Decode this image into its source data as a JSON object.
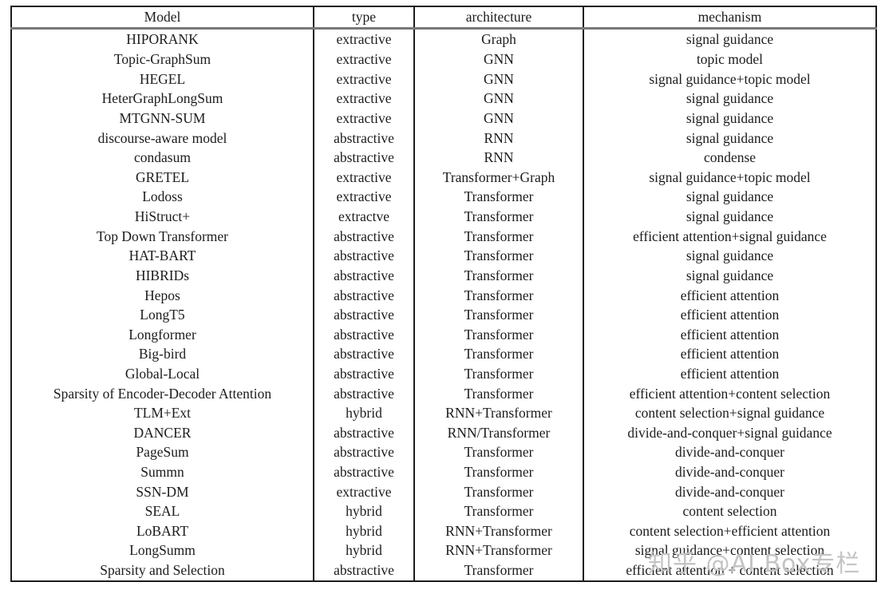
{
  "table": {
    "columns": [
      "Model",
      "type",
      "architecture",
      "mechanism"
    ],
    "rows": [
      [
        "HIPORANK",
        "extractive",
        "Graph",
        "signal guidance"
      ],
      [
        "Topic-GraphSum",
        "extractive",
        "GNN",
        "topic model"
      ],
      [
        "HEGEL",
        "extractive",
        "GNN",
        "signal guidance+topic model"
      ],
      [
        "HeterGraphLongSum",
        "extractive",
        "GNN",
        "signal guidance"
      ],
      [
        "MTGNN-SUM",
        "extractive",
        "GNN",
        "signal guidance"
      ],
      [
        "discourse-aware model",
        "abstractive",
        "RNN",
        "signal guidance"
      ],
      [
        "condasum",
        "abstractive",
        "RNN",
        "condense"
      ],
      [
        "GRETEL",
        "extractive",
        "Transformer+Graph",
        "signal guidance+topic model"
      ],
      [
        "Lodoss",
        "extractive",
        "Transformer",
        "signal guidance"
      ],
      [
        "HiStruct+",
        "extractve",
        "Transformer",
        "signal guidance"
      ],
      [
        "Top Down Transformer",
        "abstractive",
        "Transformer",
        "efficient attention+signal guidance"
      ],
      [
        "HAT-BART",
        "abstractive",
        "Transformer",
        "signal guidance"
      ],
      [
        "HIBRIDs",
        "abstractive",
        "Transformer",
        "signal guidance"
      ],
      [
        "Hepos",
        "abstractive",
        "Transformer",
        "efficient attention"
      ],
      [
        "LongT5",
        "abstractive",
        "Transformer",
        "efficient attention"
      ],
      [
        "Longformer",
        "abstractive",
        "Transformer",
        "efficient attention"
      ],
      [
        "Big-bird",
        "abstractive",
        "Transformer",
        "efficient attention"
      ],
      [
        "Global-Local",
        "abstractive",
        "Transformer",
        "efficient attention"
      ],
      [
        "Sparsity of Encoder-Decoder Attention",
        "abstractive",
        "Transformer",
        "efficient attention+content selection"
      ],
      [
        "TLM+Ext",
        "hybrid",
        "RNN+Transformer",
        "content selection+signal guidance"
      ],
      [
        "DANCER",
        "abstractive",
        "RNN/Transformer",
        "divide-and-conquer+signal guidance"
      ],
      [
        "PageSum",
        "abstractive",
        "Transformer",
        "divide-and-conquer"
      ],
      [
        "Summn",
        "abstractive",
        "Transformer",
        "divide-and-conquer"
      ],
      [
        "SSN-DM",
        "extractive",
        "Transformer",
        "divide-and-conquer"
      ],
      [
        "SEAL",
        "hybrid",
        "Transformer",
        "content selection"
      ],
      [
        "LoBART",
        "hybrid",
        "RNN+Transformer",
        "content selection+efficient attention"
      ],
      [
        "LongSumm",
        "hybrid",
        "RNN+Transformer",
        "signal guidance+content selection"
      ],
      [
        "Sparsity and Selection",
        "abstractive",
        "Transformer",
        "efficient attention + content selection"
      ]
    ]
  },
  "watermark": {
    "text": "知乎 @AI Box专栏",
    "color": "#c4c4c4"
  }
}
